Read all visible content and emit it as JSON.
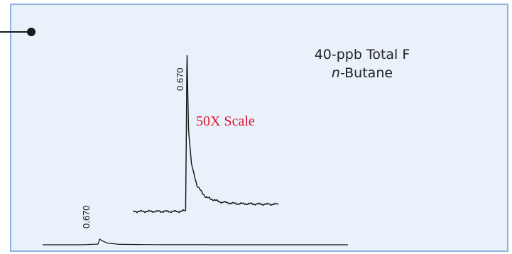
{
  "annotation": {
    "title_line1": "40-ppb Total F",
    "title_line2_italic": "n",
    "title_line2_rest": "-Butane",
    "scale_label": "50X Scale",
    "scale_color": "#e0142e"
  },
  "chart_data": [
    {
      "type": "line",
      "series": [
        {
          "x": [
            0.3,
            0.5,
            0.62,
            0.66,
            0.668,
            0.67,
            0.672,
            0.68,
            0.7,
            0.74,
            0.8,
            0.9,
            1.0,
            1.1,
            1.2,
            1.3
          ],
          "y": [
            0.0,
            0.0,
            0.0,
            0.005,
            0.9,
            1.0,
            0.88,
            0.52,
            0.3,
            0.16,
            0.09,
            0.06,
            0.05,
            0.048,
            0.046,
            0.045
          ]
        }
      ],
      "annotations": [
        {
          "x": 0.67,
          "label": "0.670"
        }
      ],
      "scale_factor": 50,
      "grid": false
    },
    {
      "type": "line",
      "series": [
        {
          "x": [
            0.0,
            0.2,
            0.29,
            0.3,
            0.31,
            0.34,
            0.4,
            0.6,
            1.0,
            1.6
          ],
          "y": [
            0.0,
            0.0,
            0.12,
            1.0,
            0.72,
            0.3,
            0.08,
            0.02,
            0.0,
            0.0
          ]
        }
      ],
      "annotations": [
        {
          "x": 0.67,
          "label": "0.670"
        }
      ],
      "scale_factor": 1,
      "grid": false
    }
  ]
}
